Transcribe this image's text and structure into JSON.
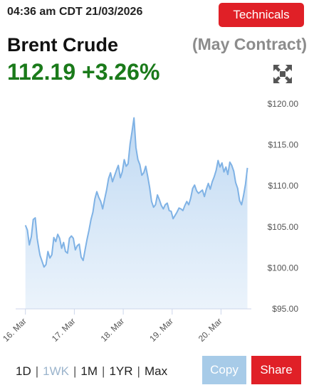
{
  "header": {
    "timestamp": "04:36 am CDT 21/03/2026",
    "technicals_label": "Technicals"
  },
  "quote": {
    "name": "Brent Crude",
    "contract": "(May Contract)",
    "price": "112.19",
    "change": "+3.26%"
  },
  "colors": {
    "positive": "#1a7a1a",
    "accent_red": "#e02027",
    "line": "#7fb2e5",
    "copy_button": "#a7cbe8"
  },
  "icons": {
    "expand": "expand-arrows-icon"
  },
  "range_tabs": [
    {
      "label": "1D",
      "active": false
    },
    {
      "label": "1WK",
      "active": true
    },
    {
      "label": "1M",
      "active": false
    },
    {
      "label": "1YR",
      "active": false
    },
    {
      "label": "Max",
      "active": false
    }
  ],
  "actions": {
    "copy_label": "Copy",
    "share_label": "Share"
  },
  "chart_data": {
    "type": "area",
    "ylim": [
      95,
      120
    ],
    "y_ticks": [
      "$120.00",
      "$115.00",
      "$110.00",
      "$105.00",
      "$100.00",
      "$95.00"
    ],
    "x_tick_labels": [
      "16. Mar",
      "17. Mar",
      "18. Mar",
      "19. Mar",
      "20. Mar"
    ],
    "grid": false,
    "series": [
      {
        "x": [
          0,
          0.04,
          0.08,
          0.12,
          0.16,
          0.2,
          0.24,
          0.28,
          0.3,
          0.34,
          0.38,
          0.42,
          0.46,
          0.5,
          0.54,
          0.58,
          0.62,
          0.66,
          0.7,
          0.74,
          0.78,
          0.82,
          0.86,
          0.9,
          0.94,
          0.98,
          1.02,
          1.06,
          1.1,
          1.14,
          1.18,
          1.22,
          1.26,
          1.3,
          1.34,
          1.38,
          1.42,
          1.46,
          1.5,
          1.54,
          1.58,
          1.62,
          1.66,
          1.7,
          1.74,
          1.78,
          1.82,
          1.86,
          1.9,
          1.94,
          1.98,
          2.02,
          2.06,
          2.1,
          2.14,
          2.18,
          2.22,
          2.26,
          2.3,
          2.34,
          2.38,
          2.42,
          2.46,
          2.5,
          2.54,
          2.58,
          2.62,
          2.66,
          2.7,
          2.74,
          2.78,
          2.82,
          2.86,
          2.9,
          2.94,
          2.98,
          3.02,
          3.06,
          3.1,
          3.14,
          3.18,
          3.22,
          3.26,
          3.3,
          3.34,
          3.38,
          3.42,
          3.46,
          3.5,
          3.54,
          3.58,
          3.62,
          3.66,
          3.7,
          3.74,
          3.78,
          3.82,
          3.86,
          3.9,
          3.94,
          3.98,
          4.02,
          4.06,
          4.1,
          4.14,
          4.18,
          4.22,
          4.26,
          4.3,
          4.34,
          4.38,
          4.42,
          4.46,
          4.5,
          4.54
        ],
        "y": [
          105.2,
          104.6,
          102.8,
          103.8,
          105.9,
          106.1,
          103.6,
          102.1,
          101.5,
          100.8,
          100.1,
          100.4,
          102.0,
          101.2,
          101.6,
          103.7,
          103.2,
          104.1,
          103.6,
          102.4,
          103.1,
          102.0,
          101.8,
          103.6,
          103.9,
          103.6,
          102.2,
          102.7,
          102.9,
          101.3,
          100.9,
          102.2,
          103.5,
          104.6,
          105.9,
          106.8,
          108.4,
          109.3,
          108.6,
          108.1,
          107.2,
          108.4,
          109.5,
          110.9,
          111.6,
          110.5,
          111.2,
          111.9,
          112.5,
          111.0,
          111.7,
          113.2,
          112.4,
          112.7,
          115.1,
          116.6,
          118.3,
          114.7,
          113.2,
          112.6,
          111.3,
          111.6,
          112.4,
          111.2,
          109.8,
          108.1,
          107.4,
          107.7,
          108.9,
          108.3,
          107.6,
          107.2,
          107.7,
          107.9,
          107.0,
          106.9,
          106.0,
          106.4,
          106.8,
          107.3,
          107.2,
          107.0,
          107.6,
          108.1,
          107.7,
          108.5,
          109.7,
          110.1,
          109.4,
          109.1,
          109.3,
          109.5,
          108.7,
          109.6,
          110.3,
          109.6,
          110.5,
          111.1,
          111.9,
          113.1,
          112.3,
          112.8,
          111.7,
          112.3,
          111.4,
          112.9,
          112.5,
          111.8,
          110.4,
          109.7,
          108.2,
          107.7,
          108.8,
          110.2,
          112.2
        ]
      }
    ]
  }
}
